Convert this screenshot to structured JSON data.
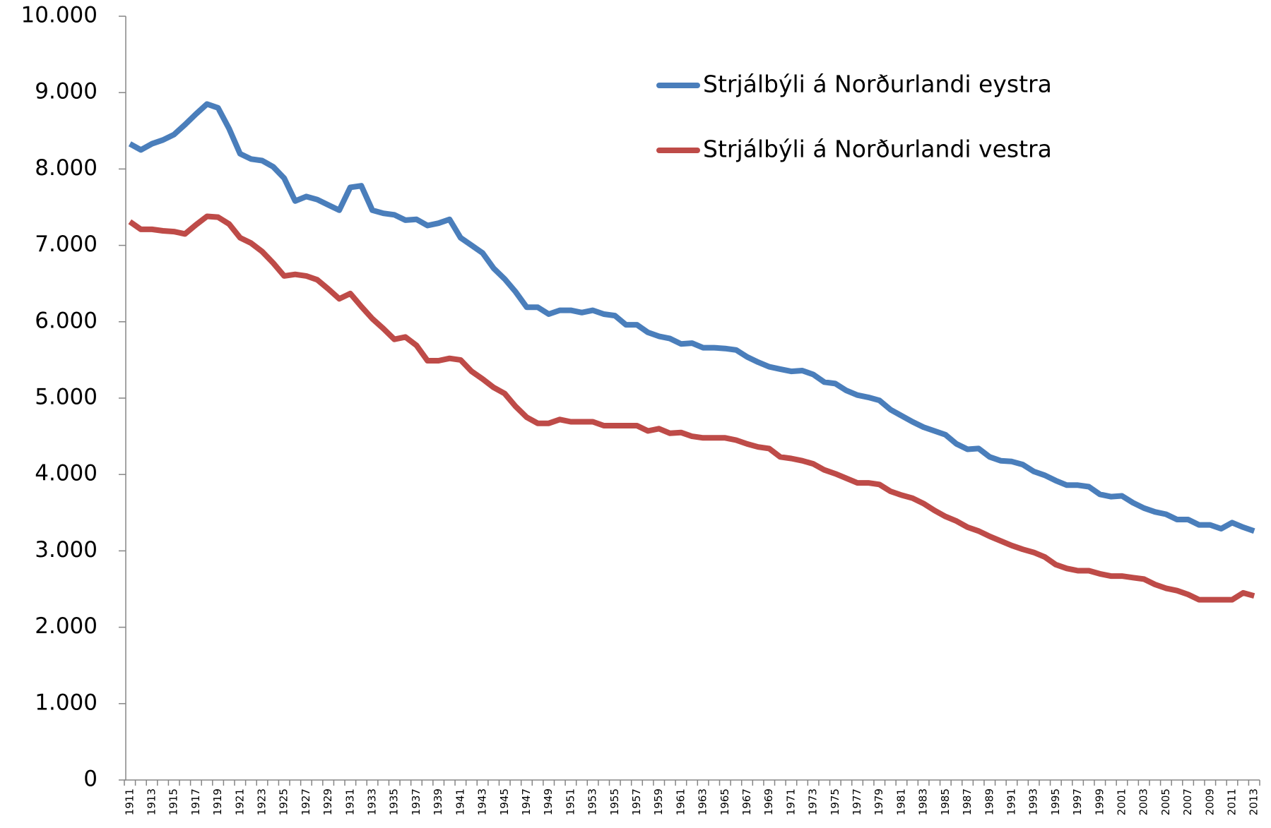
{
  "chart_data": {
    "type": "line",
    "categories": [
      "1911",
      null,
      "1913",
      null,
      "1915",
      null,
      "1917",
      null,
      "1919",
      null,
      "1921",
      null,
      "1923",
      null,
      "1925",
      null,
      "1927",
      null,
      "1929",
      null,
      "1931",
      null,
      "1933",
      null,
      "1935",
      null,
      "1937",
      null,
      "1939",
      null,
      "1941",
      null,
      "1943",
      null,
      "1945",
      null,
      "1947",
      null,
      "1949",
      null,
      "1951",
      null,
      "1953",
      null,
      "1955",
      null,
      "1957",
      null,
      "1959",
      null,
      "1961",
      null,
      "1963",
      null,
      "1965",
      null,
      "1967",
      null,
      "1969",
      null,
      "1971",
      null,
      "1973",
      null,
      "1975",
      null,
      "1977",
      null,
      "1979",
      null,
      "1981",
      null,
      "1983",
      null,
      "1985",
      null,
      "1987",
      null,
      "1989",
      null,
      "1991",
      null,
      "1993",
      null,
      "1995",
      null,
      "1997",
      null,
      "1999",
      null,
      "2001",
      null,
      "2003",
      null,
      "2005",
      null,
      "2007",
      null,
      "2009",
      null,
      "2011",
      null,
      "2013"
    ],
    "series": [
      {
        "name": "Strjálbýli á Norðurlandi eystra",
        "color": "#4a7ebb",
        "values": [
          8330,
          8250,
          8330,
          8380,
          8450,
          8580,
          8720,
          8850,
          8800,
          8530,
          8200,
          8130,
          8110,
          8030,
          7880,
          7580,
          7640,
          7600,
          7530,
          7460,
          7760,
          7780,
          7460,
          7420,
          7400,
          7330,
          7340,
          7260,
          7290,
          7340,
          7100,
          7000,
          6900,
          6700,
          6560,
          6390,
          6190,
          6190,
          6100,
          6150,
          6150,
          6120,
          6150,
          6100,
          6080,
          5960,
          5960,
          5860,
          5810,
          5780,
          5710,
          5720,
          5660,
          5660,
          5650,
          5630,
          5540,
          5470,
          5410,
          5380,
          5350,
          5360,
          5310,
          5210,
          5190,
          5100,
          5040,
          5010,
          4970,
          4850,
          4770,
          4690,
          4620,
          4570,
          4520,
          4400,
          4330,
          4340,
          4230,
          4180,
          4170,
          4130,
          4040,
          3990,
          3920,
          3860,
          3860,
          3840,
          3740,
          3710,
          3720,
          3630,
          3560,
          3510,
          3480,
          3410,
          3410,
          3340,
          3340,
          3290,
          3370,
          3310,
          3260
        ]
      },
      {
        "name": "Strjálbýli á Norðurlandi vestra",
        "color": "#be4b48",
        "values": [
          7310,
          7210,
          7210,
          7190,
          7180,
          7150,
          7270,
          7380,
          7370,
          7280,
          7100,
          7030,
          6920,
          6770,
          6600,
          6620,
          6600,
          6550,
          6430,
          6300,
          6370,
          6200,
          6040,
          5910,
          5770,
          5800,
          5690,
          5490,
          5490,
          5520,
          5500,
          5350,
          5250,
          5140,
          5060,
          4890,
          4750,
          4670,
          4670,
          4720,
          4690,
          4690,
          4690,
          4640,
          4640,
          4640,
          4640,
          4570,
          4600,
          4540,
          4550,
          4500,
          4480,
          4480,
          4480,
          4450,
          4400,
          4360,
          4340,
          4230,
          4210,
          4180,
          4140,
          4060,
          4010,
          3950,
          3890,
          3890,
          3870,
          3780,
          3730,
          3690,
          3620,
          3530,
          3450,
          3390,
          3310,
          3260,
          3190,
          3130,
          3070,
          3020,
          2980,
          2920,
          2820,
          2770,
          2740,
          2740,
          2700,
          2670,
          2670,
          2650,
          2630,
          2560,
          2510,
          2480,
          2430,
          2360,
          2360,
          2360,
          2360,
          2450,
          2410
        ]
      }
    ],
    "ylim": [
      0,
      10000
    ],
    "yticks": [
      0,
      {
        "value": 1000,
        "label": "1.000"
      },
      {
        "value": 2000,
        "label": "2.000"
      },
      {
        "value": 3000,
        "label": "3.000"
      },
      {
        "value": 4000,
        "label": "4.000"
      },
      {
        "value": 5000,
        "label": "5.000"
      },
      {
        "value": 6000,
        "label": "6.000"
      },
      {
        "value": 7000,
        "label": "7.000"
      },
      {
        "value": 8000,
        "label": "8.000"
      },
      {
        "value": 9000,
        "label": "9.000"
      },
      {
        "value": 10000,
        "label": "10.000"
      }
    ],
    "grid": false,
    "legend": "upper-right"
  }
}
